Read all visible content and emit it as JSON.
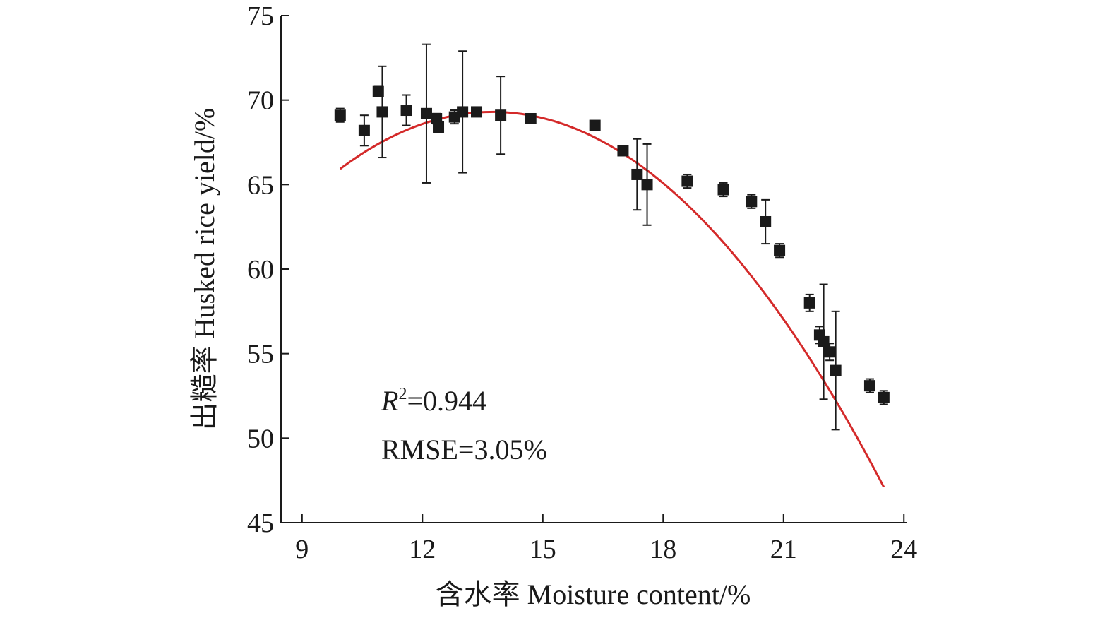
{
  "chart_data": {
    "type": "scatter",
    "xlabel": "含水率 Moisture content/%",
    "ylabel": "出糙率 Husked rice yield/%",
    "xlim": [
      8.5,
      24
    ],
    "ylim": [
      45,
      75
    ],
    "xticks": [
      9,
      12,
      15,
      18,
      21,
      24
    ],
    "yticks": [
      45,
      50,
      55,
      60,
      65,
      70,
      75
    ],
    "grid": false,
    "legend": "none",
    "colors": {
      "points": "#1a1a1a",
      "fit": "#d42a2a"
    },
    "annotations": {
      "r2_symbol": "R",
      "r2_sup": "2",
      "r2_value": "=0.944",
      "rmse": "RMSE=3.05%"
    },
    "points": [
      {
        "x": 9.95,
        "y": 69.1,
        "err": 0.4
      },
      {
        "x": 10.55,
        "y": 68.2,
        "err": 0.9
      },
      {
        "x": 10.9,
        "y": 70.5,
        "err": 0.3
      },
      {
        "x": 11.0,
        "y": 69.3,
        "err": 2.7
      },
      {
        "x": 11.6,
        "y": 69.4,
        "err": 0.9
      },
      {
        "x": 12.1,
        "y": 69.2,
        "err": 4.1
      },
      {
        "x": 12.35,
        "y": 68.9,
        "err": 0.3
      },
      {
        "x": 12.4,
        "y": 68.4,
        "err": 0.3
      },
      {
        "x": 12.8,
        "y": 69.0,
        "err": 0.4
      },
      {
        "x": 13.0,
        "y": 69.3,
        "err": 3.6
      },
      {
        "x": 13.35,
        "y": 69.3,
        "err": 0.2
      },
      {
        "x": 13.95,
        "y": 69.1,
        "err": 2.3
      },
      {
        "x": 14.7,
        "y": 68.9,
        "err": 0.2
      },
      {
        "x": 16.3,
        "y": 68.5,
        "err": 0.2
      },
      {
        "x": 17.0,
        "y": 67.0,
        "err": 0.2
      },
      {
        "x": 17.35,
        "y": 65.6,
        "err": 2.1
      },
      {
        "x": 17.6,
        "y": 65.0,
        "err": 2.4
      },
      {
        "x": 18.6,
        "y": 65.2,
        "err": 0.4
      },
      {
        "x": 19.5,
        "y": 64.7,
        "err": 0.4
      },
      {
        "x": 20.2,
        "y": 64.0,
        "err": 0.4
      },
      {
        "x": 20.55,
        "y": 62.8,
        "err": 1.3
      },
      {
        "x": 20.9,
        "y": 61.1,
        "err": 0.4
      },
      {
        "x": 21.65,
        "y": 58.0,
        "err": 0.5
      },
      {
        "x": 21.9,
        "y": 56.1,
        "err": 0.5
      },
      {
        "x": 22.0,
        "y": 55.7,
        "err": 3.4
      },
      {
        "x": 22.15,
        "y": 55.1,
        "err": 0.5
      },
      {
        "x": 22.3,
        "y": 54.0,
        "err": 3.5
      },
      {
        "x": 23.15,
        "y": 53.1,
        "err": 0.4
      },
      {
        "x": 23.5,
        "y": 52.4,
        "err": 0.4
      }
    ],
    "fit": {
      "type": "quadratic",
      "x_start": 9.95,
      "x_end": 23.5,
      "vertex_x": 13.75,
      "vertex_y": 69.3,
      "a": -0.2335
    }
  }
}
